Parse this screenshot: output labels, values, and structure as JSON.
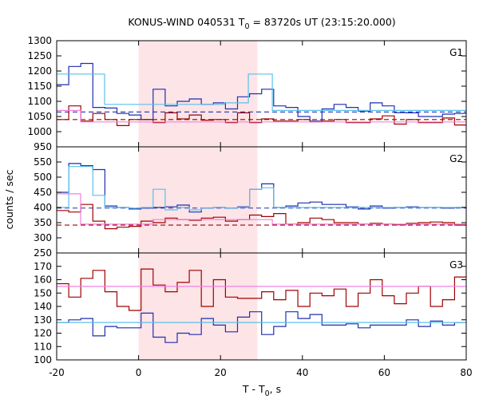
{
  "chart_data": {
    "type": "line",
    "title_prefix": "KONUS-WIND 040531 T",
    "title_sub": "0",
    "title_suffix": " = 83720s UT (23:15:20.000)",
    "xlabel_main": "T - T",
    "xlabel_sub": "0",
    "xlabel_tail": ", s",
    "ylabel": "counts / sec",
    "xlim": [
      -20,
      80
    ],
    "x_ticks": [
      -20,
      0,
      20,
      40,
      60,
      80
    ],
    "x_tick_labels": [
      "-20",
      "0",
      "20",
      "40",
      "60",
      "80"
    ],
    "shaded_interval": [
      0,
      29
    ],
    "colors": {
      "dark_blue": "#1f2fb0",
      "light_blue": "#5bc0eb",
      "dark_red": "#a00000",
      "pink": "#f080e0",
      "shade": "#fde4e6"
    },
    "panels": [
      {
        "label": "G1",
        "ylim": [
          950,
          1300
        ],
        "y_ticks": [
          950,
          1000,
          1050,
          1100,
          1150,
          1200,
          1250,
          1300
        ],
        "y_tick_labels": [
          "950",
          "1000",
          "1050",
          "1100",
          "1150",
          "1200",
          "1250",
          "1300"
        ],
        "steps": [
          {
            "color": "dark_blue",
            "x0": -20,
            "dx": 2.944,
            "values": [
              1155,
              1215,
              1225,
              1080,
              1078,
              1060,
              1055,
              1040,
              1140,
              1085,
              1100,
              1108,
              1090,
              1095,
              1075,
              1115,
              1125,
              1140,
              1085,
              1080,
              1050,
              1035,
              1075,
              1090,
              1080,
              1068,
              1095,
              1085,
              1063,
              1062,
              1050,
              1050,
              1058,
              1060,
              1098
            ]
          },
          {
            "color": "light_blue",
            "x0": -20,
            "dx": 5.85,
            "values": [
              1190,
              1190,
              1090,
              1090,
              1090,
              1090,
              1090,
              1095,
              1190,
              1070,
              1070,
              1070,
              1070,
              1070,
              1070,
              1070,
              1070,
              1070
            ]
          },
          {
            "color": "dark_red",
            "x0": -20,
            "dx": 2.944,
            "values": [
              1040,
              1085,
              1035,
              1060,
              1040,
              1020,
              1040,
              1040,
              1030,
              1062,
              1042,
              1055,
              1038,
              1040,
              1030,
              1062,
              1030,
              1042,
              1035,
              1035,
              1040,
              1032,
              1035,
              1040,
              1030,
              1030,
              1042,
              1052,
              1025,
              1040,
              1030,
              1030,
              1045,
              1022,
              1030
            ]
          },
          {
            "color": "pink",
            "x0": -20,
            "dx": 5.85,
            "values": [
              1070,
              1032,
              1032,
              1032,
              1032,
              1032,
              1032,
              1032,
              1032,
              1032,
              1032,
              1032,
              1032,
              1032,
              1032,
              1032,
              1032,
              1032
            ]
          }
        ],
        "refs": [
          {
            "color": "dark_blue",
            "value": 1065,
            "dashed": true
          },
          {
            "color": "dark_red",
            "value": 1040,
            "dashed": true
          }
        ]
      },
      {
        "label": "G2",
        "ylim": [
          250,
          600
        ],
        "y_ticks": [
          250,
          300,
          350,
          400,
          450,
          500,
          550
        ],
        "y_tick_labels": [
          "250",
          "300",
          "350",
          "400",
          "450",
          "500",
          "550"
        ],
        "steps": [
          {
            "color": "dark_blue",
            "x0": -20,
            "dx": 2.944,
            "values": [
              450,
              545,
              538,
              525,
              405,
              400,
              395,
              398,
              400,
              402,
              408,
              385,
              398,
              400,
              398,
              402,
              460,
              478,
              400,
              405,
              415,
              418,
              410,
              410,
              402,
              395,
              405,
              398,
              400,
              402,
              400,
              400,
              398,
              400,
              400
            ]
          },
          {
            "color": "light_blue",
            "x0": -20,
            "dx": 2.944,
            "values": [
              400,
              535,
              535,
              440,
              400,
              400,
              398,
              400,
              460,
              392,
              400,
              392,
              398,
              400,
              398,
              400,
              460,
              465,
              400,
              400,
              400,
              400,
              400,
              400,
              400,
              400,
              400,
              400,
              400,
              400,
              400,
              400,
              400,
              400,
              400
            ]
          },
          {
            "color": "dark_red",
            "x0": -20,
            "dx": 2.944,
            "values": [
              390,
              385,
              410,
              355,
              330,
              335,
              338,
              355,
              350,
              365,
              360,
              358,
              365,
              368,
              355,
              360,
              375,
              370,
              380,
              345,
              350,
              365,
              360,
              350,
              350,
              345,
              348,
              345,
              343,
              348,
              350,
              352,
              350,
              342,
              342
            ]
          },
          {
            "color": "pink",
            "x0": -20,
            "dx": 5.85,
            "values": [
              445,
              345,
              345,
              345,
              360,
              360,
              360,
              360,
              360,
              345,
              345,
              345,
              345,
              345,
              345,
              345,
              345,
              345
            ]
          }
        ],
        "refs": [
          {
            "color": "dark_blue",
            "value": 398,
            "dashed": true
          },
          {
            "color": "dark_red",
            "value": 342,
            "dashed": true
          }
        ]
      },
      {
        "label": "G3",
        "ylim": [
          100,
          180
        ],
        "y_ticks": [
          100,
          110,
          120,
          130,
          140,
          150,
          160,
          170
        ],
        "y_tick_labels": [
          "100",
          "110",
          "120",
          "130",
          "140",
          "150",
          "160",
          "170"
        ],
        "steps": [
          {
            "color": "dark_blue",
            "x0": -20,
            "dx": 2.944,
            "values": [
              128,
              130,
              131,
              118,
              125,
              124,
              124,
              135,
              117,
              113,
              120,
              119,
              131,
              126,
              121,
              132,
              136,
              119,
              125,
              136,
              131,
              134,
              126,
              126,
              127,
              124,
              126,
              126,
              126,
              130,
              125,
              129,
              126,
              128,
              113
            ]
          },
          {
            "color": "light_blue",
            "x0": -20,
            "dx": 5.85,
            "values": [
              128,
              128,
              128,
              128,
              128,
              128,
              128,
              128,
              128,
              128,
              128,
              128,
              128,
              128,
              128,
              128,
              128,
              128
            ]
          },
          {
            "color": "dark_red",
            "x0": -20,
            "dx": 2.944,
            "values": [
              157,
              147,
              161,
              167,
              151,
              140,
              137,
              168,
              156,
              151,
              158,
              167,
              140,
              160,
              147,
              146,
              146,
              151,
              145,
              152,
              140,
              150,
              148,
              153,
              140,
              150,
              160,
              148,
              142,
              150,
              155,
              140,
              145,
              162,
              147
            ]
          },
          {
            "color": "pink",
            "x0": -20,
            "dx": 5.85,
            "values": [
              155,
              155,
              155,
              155,
              155,
              155,
              155,
              155,
              155,
              155,
              155,
              155,
              155,
              155,
              155,
              155,
              155,
              155
            ]
          }
        ],
        "refs": []
      }
    ]
  }
}
